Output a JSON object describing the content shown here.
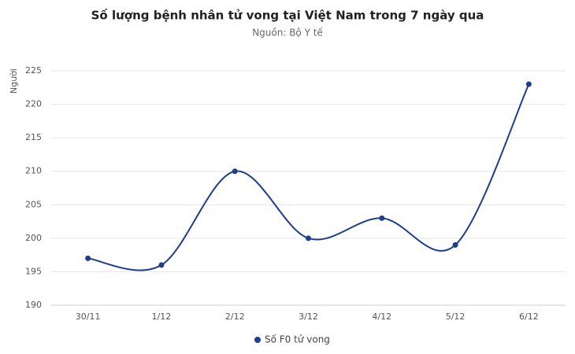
{
  "chart_data": {
    "type": "line",
    "title": "Số lượng bệnh nhân tử vong tại Việt Nam trong 7 ngày qua",
    "subtitle": "Nguồn: Bộ Y tế",
    "y_label": "Người",
    "categories": [
      "30/11",
      "1/12",
      "2/12",
      "3/12",
      "4/12",
      "5/12",
      "6/12"
    ],
    "series": [
      {
        "name": "Số F0 tử vong",
        "color": "#1f3d8f",
        "values": [
          197,
          196,
          210,
          200,
          203,
          199,
          223
        ]
      }
    ],
    "ylim": [
      190,
      225
    ],
    "yticks": [
      190,
      195,
      200,
      205,
      210,
      215,
      220,
      225
    ],
    "grid": true,
    "smooth": true
  }
}
